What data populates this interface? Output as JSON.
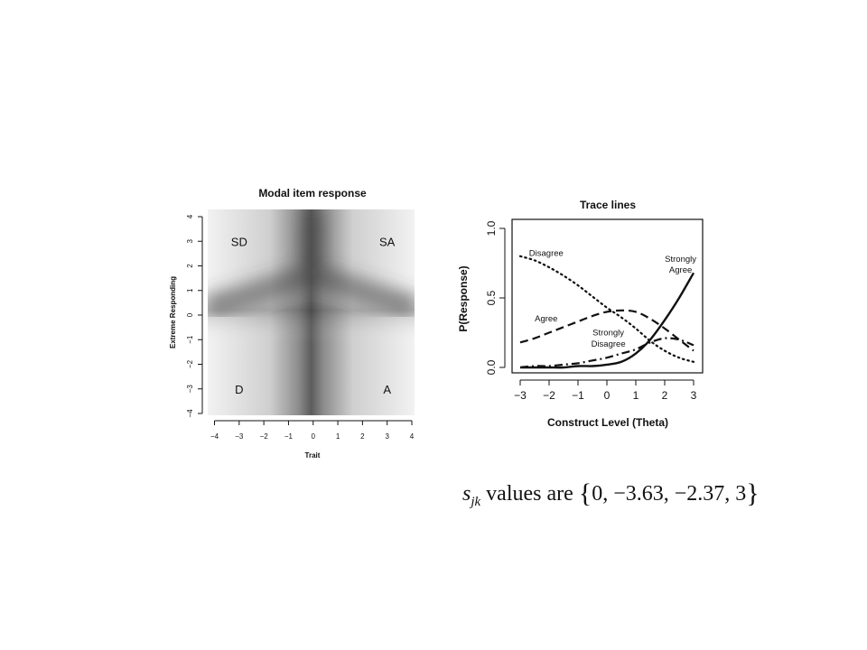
{
  "chart_data": [
    {
      "type": "heatmap",
      "title": "Modal item response",
      "xlabel": "Trait",
      "ylabel": "Extreme Responding",
      "xlim": [
        -4,
        4
      ],
      "ylim": [
        -4,
        4
      ],
      "xticks": [
        -4,
        -3,
        -2,
        -1,
        0,
        1,
        2,
        3,
        4
      ],
      "yticks": [
        -4,
        -3,
        -2,
        -1,
        0,
        1,
        2,
        3,
        4
      ],
      "regions": [
        {
          "label": "SD",
          "x": -3,
          "y": 3
        },
        {
          "label": "SA",
          "x": 3,
          "y": 3
        },
        {
          "label": "D",
          "x": -3,
          "y": -3
        },
        {
          "label": "A",
          "x": 3,
          "y": -3
        }
      ]
    },
    {
      "type": "line",
      "title": "Trace lines",
      "xlabel": "Construct Level (Theta)",
      "ylabel": "P(Response)",
      "xlim": [
        -3,
        3
      ],
      "ylim": [
        0,
        1
      ],
      "xticks": [
        -3,
        -2,
        -1,
        0,
        1,
        2,
        3
      ],
      "yticks": [
        0.0,
        0.5,
        1.0
      ],
      "ytick_labels": [
        "0.0",
        "0.5",
        "1.0"
      ],
      "x": [
        -3,
        -2.5,
        -2,
        -1.5,
        -1,
        -0.5,
        0,
        0.5,
        1,
        1.5,
        2,
        2.5,
        3
      ],
      "series": [
        {
          "name": "Disagree",
          "style": "dotted",
          "values": [
            0.8,
            0.77,
            0.72,
            0.66,
            0.59,
            0.51,
            0.43,
            0.36,
            0.28,
            0.19,
            0.12,
            0.07,
            0.04
          ]
        },
        {
          "name": "Agree",
          "style": "dashed",
          "values": [
            0.18,
            0.21,
            0.25,
            0.29,
            0.33,
            0.37,
            0.4,
            0.41,
            0.4,
            0.35,
            0.28,
            0.2,
            0.12
          ]
        },
        {
          "name": "Strongly Disagree",
          "style": "dash-dot",
          "values": [
            0.0,
            0.01,
            0.01,
            0.02,
            0.03,
            0.05,
            0.07,
            0.1,
            0.13,
            0.18,
            0.21,
            0.2,
            0.16
          ]
        },
        {
          "name": "Strongly Agree",
          "style": "solid",
          "values": [
            0.0,
            0.0,
            0.0,
            0.0,
            0.01,
            0.01,
            0.02,
            0.04,
            0.1,
            0.2,
            0.34,
            0.5,
            0.68
          ]
        }
      ],
      "annotations": [
        {
          "text": "Disagree",
          "x": -2.1,
          "y": 0.82
        },
        {
          "text": "Agree",
          "x": -2.1,
          "y": 0.35
        },
        {
          "text": "Strongly",
          "x": 0.05,
          "y": 0.25
        },
        {
          "text": "Disagree",
          "x": 0.05,
          "y": 0.17
        },
        {
          "text": "Strongly",
          "x": 2.55,
          "y": 0.78
        },
        {
          "text": "Agree",
          "x": 2.55,
          "y": 0.7
        }
      ]
    }
  ],
  "formula": {
    "symbol": "s",
    "subscript": "jk",
    "text": "values are",
    "open_brace": "{",
    "values": "0,  −3.63,  −2.37,  3",
    "close_brace": "}"
  }
}
